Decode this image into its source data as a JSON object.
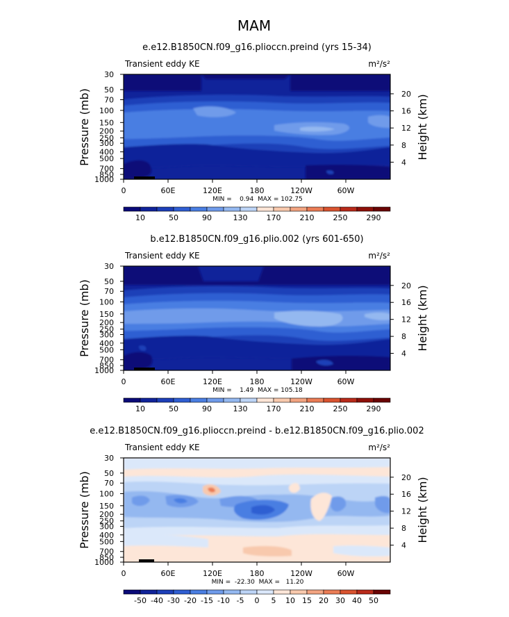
{
  "figure_title": "MAM",
  "chart_data": [
    {
      "type": "heatmap",
      "title": "e.e12.B1850CN.f09_g16.pliocсn.preind (yrs 15-34)",
      "variable": "Transient eddy KE",
      "units": "m²/s²",
      "ylabel": "Pressure (mb)",
      "y2label": "Height (km)",
      "x_ticks": [
        "0",
        "60E",
        "120E",
        "180",
        "120W",
        "60W"
      ],
      "y_ticks": [
        "30",
        "50",
        "70",
        "100",
        "150",
        "200",
        "250",
        "300",
        "400",
        "500",
        "700",
        "850",
        "1000"
      ],
      "y2_ticks": [
        "20",
        "16",
        "12",
        "8",
        "4"
      ],
      "stats": "MIN =    0.94  MAX = 102.75",
      "min": 0.94,
      "max": 102.75,
      "colorbar_ticks": [
        "10",
        "50",
        "90",
        "130",
        "170",
        "210",
        "250",
        "290"
      ],
      "colorbar_colors": [
        "#0a0a78",
        "#10239a",
        "#1d3fb8",
        "#2f5ed2",
        "#4a7ee2",
        "#6f9bea",
        "#94b8f0",
        "#bcd4f6",
        "#ffe5d6",
        "#f8c9ad",
        "#f2a481",
        "#ea7c55",
        "#d9532f",
        "#b82a1a",
        "#8e1009",
        "#6a0404"
      ],
      "grid": false
    },
    {
      "type": "heatmap",
      "title": "b.e12.B1850CN.f09_g16.plio.002 (yrs 601-650)",
      "variable": "Transient eddy KE",
      "units": "m²/s²",
      "ylabel": "Pressure (mb)",
      "y2label": "Height (km)",
      "x_ticks": [
        "0",
        "60E",
        "120E",
        "180",
        "120W",
        "60W"
      ],
      "y_ticks": [
        "30",
        "50",
        "70",
        "100",
        "150",
        "200",
        "250",
        "300",
        "400",
        "500",
        "700",
        "850",
        "1000"
      ],
      "y2_ticks": [
        "20",
        "16",
        "12",
        "8",
        "4"
      ],
      "stats": "MIN =    1.49  MAX = 105.18",
      "min": 1.49,
      "max": 105.18,
      "colorbar_ticks": [
        "10",
        "50",
        "90",
        "130",
        "170",
        "210",
        "250",
        "290"
      ],
      "colorbar_colors": [
        "#0a0a78",
        "#10239a",
        "#1d3fb8",
        "#2f5ed2",
        "#4a7ee2",
        "#6f9bea",
        "#94b8f0",
        "#bcd4f6",
        "#ffe5d6",
        "#f8c9ad",
        "#f2a481",
        "#ea7c55",
        "#d9532f",
        "#b82a1a",
        "#8e1009",
        "#6a0404"
      ],
      "grid": false
    },
    {
      "type": "heatmap",
      "title": "e.e12.B1850CN.f09_g16.pliocсn.preind - b.e12.B1850CN.f09_g16.plio.002",
      "variable": "Transient eddy KE",
      "units": "m²/s²",
      "ylabel": "Pressure (mb)",
      "y2label": "Height (km)",
      "x_ticks": [
        "0",
        "60E",
        "120E",
        "180",
        "120W",
        "60W"
      ],
      "y_ticks": [
        "30",
        "50",
        "70",
        "100",
        "150",
        "200",
        "250",
        "300",
        "400",
        "500",
        "700",
        "850",
        "1000"
      ],
      "y2_ticks": [
        "20",
        "16",
        "12",
        "8",
        "4"
      ],
      "stats": "MIN =  -22.30  MAX =   11.20",
      "min": -22.3,
      "max": 11.2,
      "colorbar_ticks": [
        "-50",
        "-40",
        "-30",
        "-20",
        "-15",
        "-10",
        "-5",
        "0",
        "5",
        "10",
        "15",
        "20",
        "30",
        "40",
        "50"
      ],
      "colorbar_colors": [
        "#0a0a78",
        "#10239a",
        "#1d3fb8",
        "#2f5ed2",
        "#4a7ee2",
        "#6f9bea",
        "#94b8f0",
        "#bcd4f6",
        "#dbe8fa",
        "#fde6d8",
        "#f8c9ad",
        "#f2a481",
        "#ea7c55",
        "#d9532f",
        "#b82a1a",
        "#6a0404"
      ],
      "grid": false
    }
  ]
}
